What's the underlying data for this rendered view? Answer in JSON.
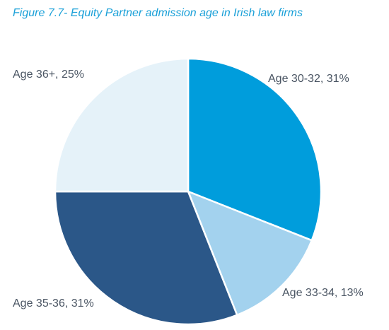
{
  "chart_data": {
    "type": "pie",
    "title": "Figure 7.7- Equity Partner admission age in Irish law firms",
    "slices": [
      {
        "label": "Age 30-32",
        "value": 31,
        "label_text": "Age 30-32, 31%",
        "color": "#009ddc"
      },
      {
        "label": "Age 33-34",
        "value": 13,
        "label_text": "Age 33-34, 13%",
        "color": "#a3d2ee"
      },
      {
        "label": "Age 35-36",
        "value": 31,
        "label_text": "Age 35-36, 31%",
        "color": "#2b5788"
      },
      {
        "label": "Age 36+",
        "value": 25,
        "label_text": "Age 36+, 25%",
        "color": "#e5f2f9"
      }
    ]
  }
}
